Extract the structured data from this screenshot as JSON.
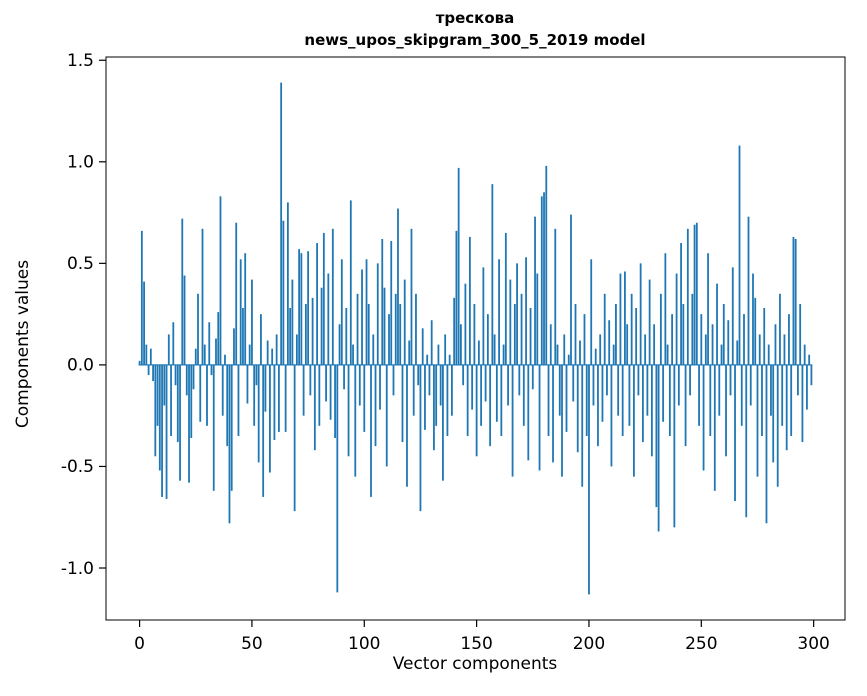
{
  "chart_data": {
    "type": "bar",
    "title": "трескова",
    "subtitle": "news_upos_skipgram_300_5_2019 model",
    "xlabel": "Vector components",
    "ylabel": "Components values",
    "legend": "none",
    "grid": false,
    "bar_color": "#1f77b4",
    "xlim": [
      -14.95,
      313.95
    ],
    "ylim": [
      -1.256,
      1.516
    ],
    "xticks": [
      0,
      50,
      100,
      150,
      200,
      250,
      300
    ],
    "yticks": [
      -1.0,
      -0.5,
      0.0,
      0.5,
      1.0,
      1.5
    ],
    "n_components": 300,
    "values": [
      0.02,
      0.66,
      0.41,
      0.1,
      -0.05,
      0.08,
      -0.08,
      -0.45,
      -0.3,
      -0.52,
      -0.65,
      -0.2,
      -0.66,
      0.15,
      -0.35,
      0.21,
      -0.1,
      -0.38,
      -0.57,
      0.72,
      0.44,
      -0.15,
      -0.58,
      -0.36,
      -0.12,
      0.08,
      0.35,
      -0.28,
      0.67,
      0.1,
      -0.3,
      0.21,
      -0.05,
      -0.62,
      0.13,
      0.26,
      0.83,
      -0.25,
      0.05,
      -0.4,
      -0.78,
      -0.62,
      0.18,
      0.7,
      -0.35,
      0.52,
      0.28,
      0.55,
      -0.19,
      0.1,
      0.42,
      -0.3,
      -0.1,
      -0.48,
      0.25,
      -0.65,
      -0.23,
      0.12,
      -0.53,
      0.08,
      -0.37,
      0.15,
      -0.33,
      1.39,
      0.71,
      -0.33,
      0.8,
      0.28,
      0.42,
      -0.72,
      0.15,
      0.57,
      0.55,
      -0.25,
      0.3,
      0.56,
      -0.15,
      0.33,
      -0.42,
      0.6,
      -0.3,
      0.38,
      0.65,
      -0.18,
      0.45,
      -0.27,
      0.67,
      -0.36,
      -1.12,
      0.2,
      0.52,
      -0.12,
      0.28,
      -0.45,
      0.81,
      0.1,
      -0.55,
      0.35,
      -0.2,
      0.47,
      -0.33,
      0.52,
      0.3,
      -0.65,
      0.15,
      -0.4,
      0.5,
      -0.22,
      0.62,
      0.38,
      -0.5,
      0.25,
      0.61,
      -0.15,
      0.35,
      0.77,
      0.3,
      -0.38,
      0.42,
      -0.6,
      0.12,
      0.67,
      -0.25,
      0.35,
      -0.1,
      -0.72,
      0.18,
      -0.32,
      0.05,
      -0.15,
      0.22,
      -0.42,
      -0.3,
      0.1,
      -0.2,
      -0.57,
      0.15,
      -0.35,
      0.05,
      -0.25,
      0.33,
      0.66,
      0.97,
      0.2,
      -0.1,
      0.4,
      -0.35,
      0.63,
      -0.22,
      0.3,
      -0.45,
      0.12,
      -0.3,
      0.48,
      -0.18,
      0.25,
      -0.4,
      0.89,
      0.15,
      -0.28,
      0.52,
      -0.35,
      0.1,
      0.65,
      -0.2,
      0.42,
      -0.55,
      0.3,
      0.5,
      -0.15,
      0.35,
      -0.3,
      0.53,
      -0.47,
      0.28,
      -0.12,
      0.73,
      0.45,
      -0.52,
      0.83,
      0.85,
      0.98,
      -0.35,
      0.2,
      -0.48,
      0.67,
      0.1,
      -0.25,
      -0.55,
      0.15,
      -0.33,
      0.05,
      0.74,
      -0.18,
      0.3,
      -0.43,
      0.12,
      -0.6,
      0.25,
      -0.35,
      -1.13,
      0.52,
      -0.2,
      0.08,
      -0.4,
      0.15,
      -0.28,
      0.35,
      -0.15,
      0.22,
      -0.5,
      0.1,
      0.3,
      -0.25,
      0.45,
      -0.35,
      0.46,
      0.2,
      -0.3,
      0.35,
      -0.55,
      0.28,
      -0.15,
      0.5,
      -0.38,
      0.15,
      -0.25,
      0.42,
      -0.45,
      0.2,
      -0.7,
      -0.82,
      0.35,
      -0.28,
      0.55,
      0.1,
      -0.35,
      0.25,
      -0.8,
      0.45,
      -0.2,
      0.6,
      0.3,
      -0.4,
      0.67,
      -0.15,
      0.35,
      0.69,
      0.7,
      -0.3,
      0.25,
      -0.52,
      0.15,
      0.55,
      -0.35,
      0.2,
      -0.62,
      0.4,
      -0.25,
      0.1,
      0.3,
      -0.45,
      0.22,
      -0.15,
      0.48,
      -0.67,
      0.12,
      1.08,
      -0.3,
      0.25,
      -0.75,
      0.73,
      -0.2,
      0.45,
      0.33,
      -0.55,
      0.15,
      -0.35,
      0.28,
      -0.78,
      0.1,
      -0.25,
      -0.48,
      0.2,
      -0.6,
      0.35,
      -0.3,
      0.15,
      -0.42,
      0.25,
      -0.35,
      0.63,
      0.62,
      -0.15,
      0.3,
      -0.38,
      0.1,
      -0.22,
      0.05,
      -0.1
    ]
  }
}
